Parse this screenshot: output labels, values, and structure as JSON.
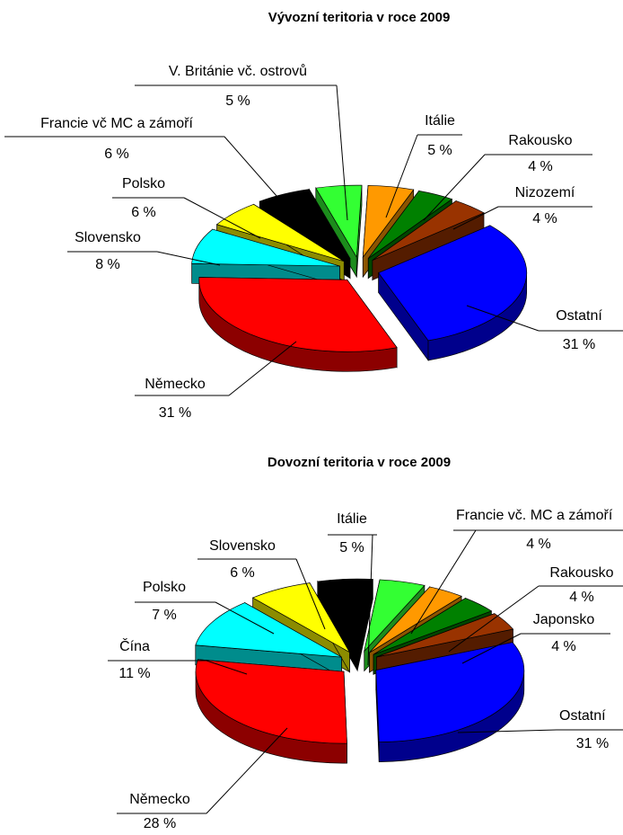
{
  "chart_data": [
    {
      "type": "pie",
      "title": "Vývozní teritoria v roce 2009",
      "categories": [
        "Itálie",
        "Rakousko",
        "Nizozemí",
        "Ostatní",
        "Německo",
        "Slovensko",
        "Polsko",
        "Francie vč MC a zámoří",
        "V. Británie vč. ostrovů"
      ],
      "values": [
        5,
        4,
        4,
        31,
        31,
        8,
        6,
        6,
        5
      ],
      "value_labels": [
        "5 %",
        "4 %",
        "4 %",
        "31 %",
        "31 %",
        "8 %",
        "6 %",
        "6 %",
        "5 %"
      ],
      "colors": [
        "#ff9900",
        "#008000",
        "#993300",
        "#0000ff",
        "#ff0000",
        "#00ffff",
        "#ffff00",
        "#000000",
        "#33ff33"
      ]
    },
    {
      "type": "pie",
      "title": "Dovozní teritoria v roce 2009",
      "categories": [
        "Itálie",
        "Francie vč. MC a zámoří",
        "Rakousko",
        "Japonsko",
        "Ostatní",
        "Německo",
        "Čína",
        "Polsko",
        "Slovensko"
      ],
      "values": [
        5,
        4,
        4,
        4,
        31,
        28,
        11,
        7,
        6
      ],
      "value_labels": [
        "5 %",
        "4 %",
        "4 %",
        "4 %",
        "31 %",
        "28 %",
        "11 %",
        "7 %",
        "6 %"
      ],
      "colors": [
        "#33ff33",
        "#ff9900",
        "#008000",
        "#993300",
        "#0000ff",
        "#ff0000",
        "#00ffff",
        "#ffff00",
        "#000000"
      ]
    }
  ]
}
